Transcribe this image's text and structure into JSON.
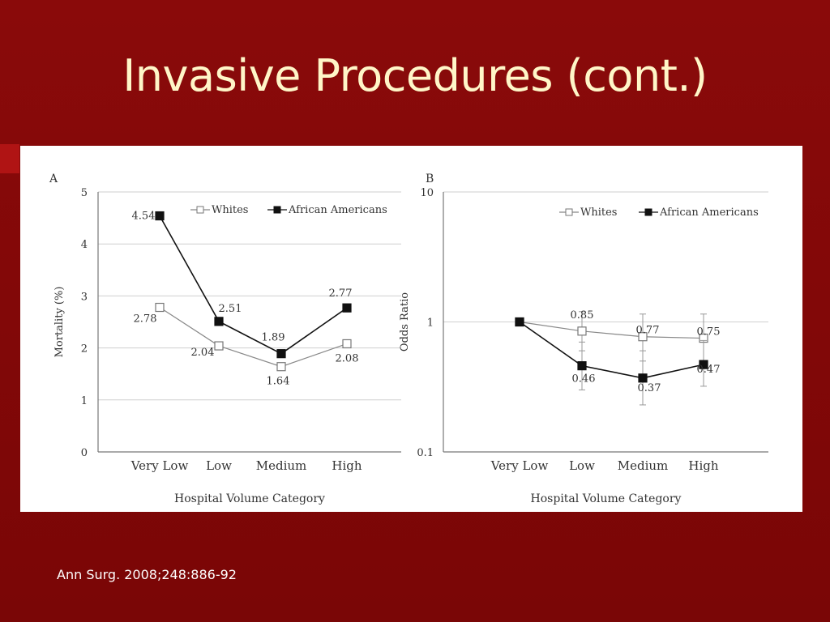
{
  "slide": {
    "title": "Invasive Procedures (cont.)",
    "citation": "Ann Surg. 2008;248:886-92"
  },
  "colors": {
    "background": "#7a0606",
    "title": "#fff6c8",
    "whites_series": "#888888",
    "african_american_series": "#111111"
  },
  "chart_data": [
    {
      "type": "line",
      "panel_label": "A",
      "categories": [
        "Very Low",
        "Low",
        "Medium",
        "High"
      ],
      "xlabel": "Hospital Volume Category",
      "ylabel": "Mortality (%)",
      "ylim": [
        0,
        5
      ],
      "yticks": [
        "0",
        "1",
        "2",
        "3",
        "4",
        "5"
      ],
      "yscale": "linear",
      "grid": true,
      "legend_position": "top-right",
      "series": [
        {
          "name": "Whites",
          "values": [
            2.78,
            2.04,
            1.64,
            2.08
          ],
          "labels": [
            "2.78",
            "2.04",
            "1.64",
            "2.08"
          ],
          "marker": "open-square"
        },
        {
          "name": "African Americans",
          "values": [
            4.54,
            2.51,
            1.89,
            2.77
          ],
          "labels": [
            "4.54",
            "2.51",
            "1.89",
            "2.77"
          ],
          "marker": "filled-square"
        }
      ]
    },
    {
      "type": "line",
      "panel_label": "B",
      "categories": [
        "Very Low",
        "Low",
        "Medium",
        "High"
      ],
      "xlabel": "Hospital Volume Category",
      "ylabel": "Odds Ratio",
      "ylim": [
        0.1,
        10
      ],
      "yticks": [
        "0.1",
        "1",
        "10"
      ],
      "yscale": "log",
      "grid": true,
      "legend_position": "top-right",
      "series": [
        {
          "name": "Whites",
          "values": [
            1.0,
            0.85,
            0.77,
            0.75
          ],
          "labels": [
            "",
            "0.85",
            "0.77",
            "0.75"
          ],
          "ci": [
            null,
            [
              0.6,
              1.2
            ],
            [
              0.5,
              1.15
            ],
            [
              0.48,
              1.15
            ]
          ],
          "marker": "open-square"
        },
        {
          "name": "African Americans",
          "values": [
            1.0,
            0.46,
            0.37,
            0.47
          ],
          "labels": [
            "",
            "0.46",
            "0.37",
            "0.47"
          ],
          "ci": [
            null,
            [
              0.3,
              0.7
            ],
            [
              0.23,
              0.6
            ],
            [
              0.32,
              0.72
            ]
          ],
          "marker": "filled-square"
        }
      ]
    }
  ]
}
